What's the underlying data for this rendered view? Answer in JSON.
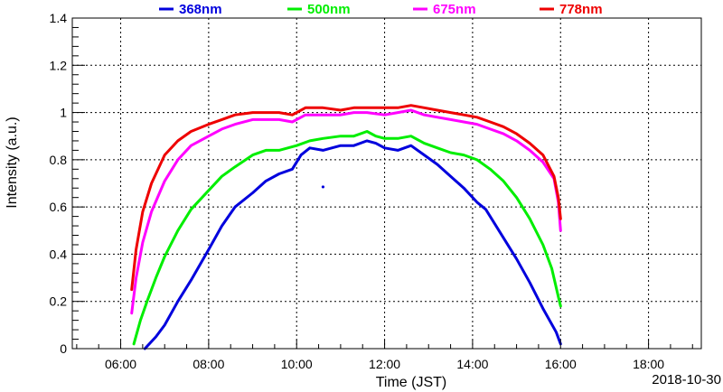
{
  "chart_data": {
    "type": "line",
    "xlabel": "Time (JST)",
    "ylabel": "Intensity (a.u.)",
    "date": "2018-10-30",
    "xlim": [
      4.9,
      19.2
    ],
    "ylim": [
      0,
      1.4
    ],
    "x_ticks": [
      6,
      8,
      10,
      12,
      14,
      16,
      18
    ],
    "x_tick_labels": [
      "06:00",
      "08:00",
      "10:00",
      "12:00",
      "14:00",
      "16:00",
      "18:00"
    ],
    "y_ticks": [
      0,
      0.2,
      0.4,
      0.6,
      0.8,
      1,
      1.2,
      1.4
    ],
    "y_tick_labels": [
      "0",
      "0.2",
      "0.4",
      "0.6",
      "0.8",
      "1",
      "1.2",
      "1.4"
    ],
    "grid": true,
    "legend_position": "top",
    "series": [
      {
        "name": "368nm",
        "color": "#0000dd",
        "x": [
          6.55,
          6.8,
          7.0,
          7.3,
          7.6,
          8.0,
          8.3,
          8.6,
          9.0,
          9.3,
          9.6,
          9.9,
          10.1,
          10.3,
          10.6,
          11.0,
          11.3,
          11.6,
          11.8,
          12.0,
          12.3,
          12.6,
          12.9,
          13.2,
          13.5,
          13.8,
          14.1,
          14.3,
          14.6,
          15.0,
          15.3,
          15.6,
          15.9,
          16.0
        ],
        "values": [
          0.0,
          0.05,
          0.1,
          0.2,
          0.29,
          0.42,
          0.52,
          0.6,
          0.66,
          0.71,
          0.74,
          0.76,
          0.82,
          0.85,
          0.84,
          0.86,
          0.86,
          0.88,
          0.87,
          0.85,
          0.84,
          0.86,
          0.82,
          0.78,
          0.73,
          0.68,
          0.62,
          0.59,
          0.5,
          0.38,
          0.28,
          0.17,
          0.07,
          0.02
        ]
      },
      {
        "name": "500nm",
        "color": "#00ee00",
        "x": [
          6.3,
          6.45,
          6.6,
          6.8,
          7.0,
          7.3,
          7.6,
          8.0,
          8.3,
          8.6,
          9.0,
          9.3,
          9.6,
          10.0,
          10.3,
          10.6,
          11.0,
          11.3,
          11.6,
          11.8,
          12.0,
          12.3,
          12.6,
          12.9,
          13.2,
          13.5,
          13.8,
          14.1,
          14.4,
          14.7,
          15.0,
          15.3,
          15.6,
          15.8,
          15.95,
          16.0
        ],
        "values": [
          0.02,
          0.12,
          0.2,
          0.3,
          0.39,
          0.5,
          0.59,
          0.67,
          0.73,
          0.77,
          0.82,
          0.84,
          0.84,
          0.86,
          0.88,
          0.89,
          0.9,
          0.9,
          0.92,
          0.9,
          0.89,
          0.89,
          0.9,
          0.87,
          0.85,
          0.83,
          0.82,
          0.8,
          0.76,
          0.71,
          0.64,
          0.55,
          0.44,
          0.34,
          0.22,
          0.18
        ]
      },
      {
        "name": "675nm",
        "color": "#ff00ff",
        "x": [
          6.25,
          6.35,
          6.5,
          6.7,
          7.0,
          7.3,
          7.6,
          8.0,
          8.3,
          8.6,
          9.0,
          9.3,
          9.6,
          9.9,
          10.2,
          10.6,
          11.0,
          11.3,
          11.6,
          12.0,
          12.3,
          12.6,
          12.9,
          13.2,
          13.5,
          13.8,
          14.1,
          14.4,
          14.7,
          15.0,
          15.3,
          15.6,
          15.85,
          15.95,
          16.0
        ],
        "values": [
          0.15,
          0.3,
          0.45,
          0.58,
          0.71,
          0.8,
          0.86,
          0.9,
          0.93,
          0.95,
          0.97,
          0.97,
          0.97,
          0.96,
          0.99,
          0.99,
          0.99,
          1.0,
          1.0,
          0.99,
          1.0,
          1.01,
          0.99,
          0.98,
          0.97,
          0.96,
          0.95,
          0.93,
          0.91,
          0.88,
          0.84,
          0.79,
          0.72,
          0.62,
          0.5
        ]
      },
      {
        "name": "778nm",
        "color": "#ee0000",
        "x": [
          6.25,
          6.35,
          6.5,
          6.7,
          7.0,
          7.3,
          7.6,
          8.0,
          8.3,
          8.6,
          9.0,
          9.3,
          9.6,
          9.9,
          10.2,
          10.6,
          11.0,
          11.3,
          11.6,
          12.0,
          12.3,
          12.6,
          12.9,
          13.2,
          13.5,
          13.8,
          14.1,
          14.4,
          14.7,
          15.0,
          15.3,
          15.6,
          15.85,
          15.95,
          16.0
        ],
        "values": [
          0.25,
          0.42,
          0.58,
          0.7,
          0.82,
          0.88,
          0.92,
          0.95,
          0.97,
          0.99,
          1.0,
          1.0,
          1.0,
          0.99,
          1.02,
          1.02,
          1.01,
          1.02,
          1.02,
          1.02,
          1.02,
          1.03,
          1.02,
          1.01,
          1.0,
          0.99,
          0.98,
          0.96,
          0.94,
          0.91,
          0.87,
          0.82,
          0.73,
          0.64,
          0.55
        ]
      }
    ],
    "annotations": [
      {
        "series": "368nm",
        "x": 10.6,
        "y": 0.685
      }
    ]
  }
}
